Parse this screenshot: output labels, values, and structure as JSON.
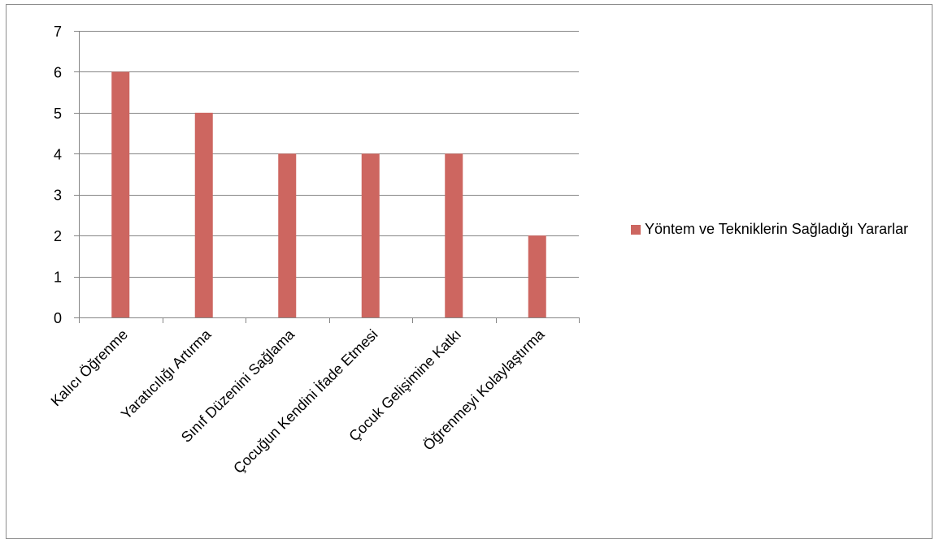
{
  "chart_data": {
    "type": "bar",
    "categories": [
      "Kalıcı Öğrenme",
      "Yaratıcılığı Artırma",
      "Sınıf Düzenini Sağlama",
      "Çocuğun Kendini İfade Etmesi",
      "Çocuk Gelişimine Katkı",
      "Öğrenmeyi Kolaylaştırma"
    ],
    "series": [
      {
        "name": "Yöntem ve Tekniklerin Sağladığı Yararlar",
        "values": [
          6,
          5,
          4,
          4,
          4,
          2
        ],
        "color": "#cd6660"
      }
    ],
    "ylim": [
      0,
      7
    ],
    "yticks": [
      "0",
      "1",
      "2",
      "3",
      "4",
      "5",
      "6",
      "7"
    ],
    "grid": true,
    "legend_position": "right",
    "title": "",
    "xlabel": "",
    "ylabel": ""
  }
}
